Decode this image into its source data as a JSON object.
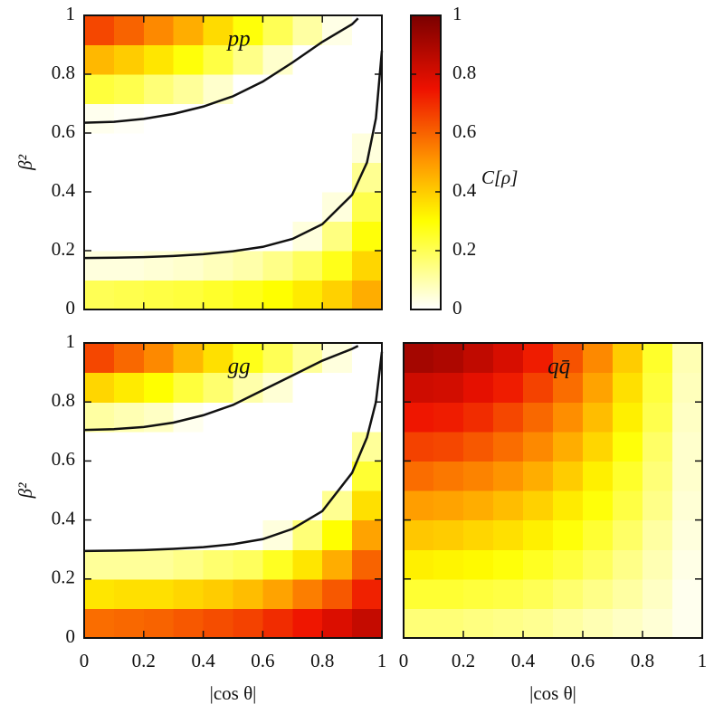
{
  "chart_data": [
    {
      "type": "heatmap",
      "title": "pp",
      "ylabel": "β²",
      "x": [
        0.05,
        0.15,
        0.25,
        0.35,
        0.45,
        0.55,
        0.65,
        0.75,
        0.85,
        0.95
      ],
      "y": [
        0.05,
        0.15,
        0.25,
        0.35,
        0.45,
        0.55,
        0.65,
        0.75,
        0.85,
        0.95
      ],
      "values": [
        [
          0.2,
          0.21,
          0.22,
          0.23,
          0.25,
          0.27,
          0.3,
          0.34,
          0.39,
          0.46
        ],
        [
          0.04,
          0.04,
          0.05,
          0.06,
          0.08,
          0.1,
          0.14,
          0.19,
          0.27,
          0.38
        ],
        [
          0,
          0,
          0,
          0,
          0,
          0,
          0,
          0.04,
          0.15,
          0.29
        ],
        [
          0,
          0,
          0,
          0,
          0,
          0,
          0,
          0,
          0.04,
          0.21
        ],
        [
          0,
          0,
          0,
          0,
          0,
          0,
          0,
          0,
          0,
          0.13
        ],
        [
          0,
          0,
          0,
          0,
          0,
          0,
          0,
          0,
          0,
          0.04
        ],
        [
          0.02,
          0.01,
          0,
          0,
          0,
          0,
          0,
          0,
          0,
          0
        ],
        [
          0.23,
          0.21,
          0.16,
          0.12,
          0.06,
          0,
          0,
          0,
          0,
          0
        ],
        [
          0.44,
          0.4,
          0.35,
          0.29,
          0.22,
          0.14,
          0.06,
          0,
          0,
          0
        ],
        [
          0.65,
          0.6,
          0.53,
          0.46,
          0.37,
          0.29,
          0.2,
          0.11,
          0.03,
          0
        ]
      ],
      "contours": [
        {
          "x": [
            0,
            0.1,
            0.2,
            0.3,
            0.4,
            0.5,
            0.6,
            0.7,
            0.8,
            0.9,
            0.95,
            0.98,
            1
          ],
          "y": [
            0.175,
            0.176,
            0.178,
            0.182,
            0.188,
            0.198,
            0.213,
            0.24,
            0.29,
            0.39,
            0.5,
            0.65,
            0.88
          ]
        },
        {
          "x": [
            0,
            0.1,
            0.2,
            0.3,
            0.4,
            0.5,
            0.6,
            0.7,
            0.8,
            0.9,
            0.92
          ],
          "y": [
            0.635,
            0.638,
            0.648,
            0.665,
            0.69,
            0.725,
            0.775,
            0.84,
            0.91,
            0.97,
            0.99
          ]
        }
      ],
      "xlim": [
        0,
        1
      ],
      "ylim": [
        0,
        1
      ],
      "xticks": [
        0,
        0.2,
        0.4,
        0.6,
        0.8,
        1
      ],
      "yticks": [
        0,
        0.2,
        0.4,
        0.6,
        0.8,
        1
      ]
    },
    {
      "type": "heatmap",
      "title": "gg",
      "ylabel": "β²",
      "xlabel": "|cos θ|",
      "x": [
        0.05,
        0.15,
        0.25,
        0.35,
        0.45,
        0.55,
        0.65,
        0.75,
        0.85,
        0.95
      ],
      "y": [
        0.05,
        0.15,
        0.25,
        0.35,
        0.45,
        0.55,
        0.65,
        0.75,
        0.85,
        0.95
      ],
      "values": [
        [
          0.58,
          0.59,
          0.6,
          0.62,
          0.64,
          0.66,
          0.7,
          0.74,
          0.79,
          0.84
        ],
        [
          0.35,
          0.36,
          0.36,
          0.38,
          0.4,
          0.43,
          0.48,
          0.55,
          0.62,
          0.72
        ],
        [
          0.12,
          0.12,
          0.12,
          0.14,
          0.17,
          0.19,
          0.26,
          0.35,
          0.46,
          0.6
        ],
        [
          0,
          0,
          0,
          0,
          0,
          0,
          0.04,
          0.16,
          0.3,
          0.48
        ],
        [
          0,
          0,
          0,
          0,
          0,
          0,
          0,
          0,
          0.13,
          0.36
        ],
        [
          0,
          0,
          0,
          0,
          0,
          0,
          0,
          0,
          0,
          0.24
        ],
        [
          0,
          0,
          0,
          0,
          0,
          0,
          0,
          0,
          0,
          0.12
        ],
        [
          0.11,
          0.09,
          0.07,
          0.02,
          0,
          0,
          0,
          0,
          0,
          0
        ],
        [
          0.38,
          0.34,
          0.3,
          0.23,
          0.17,
          0.1,
          0.05,
          0,
          0,
          0
        ],
        [
          0.65,
          0.59,
          0.53,
          0.44,
          0.36,
          0.27,
          0.2,
          0.12,
          0.04,
          0
        ]
      ],
      "contours": [
        {
          "x": [
            0,
            0.1,
            0.2,
            0.3,
            0.4,
            0.5,
            0.6,
            0.7,
            0.8,
            0.9,
            0.95,
            0.98,
            1
          ],
          "y": [
            0.295,
            0.296,
            0.298,
            0.302,
            0.308,
            0.318,
            0.335,
            0.37,
            0.43,
            0.56,
            0.68,
            0.8,
            0.97
          ]
        },
        {
          "x": [
            0,
            0.1,
            0.2,
            0.3,
            0.4,
            0.5,
            0.6,
            0.7,
            0.8,
            0.9,
            0.92
          ],
          "y": [
            0.705,
            0.708,
            0.715,
            0.73,
            0.755,
            0.79,
            0.84,
            0.89,
            0.94,
            0.98,
            0.99
          ]
        }
      ],
      "xlim": [
        0,
        1
      ],
      "ylim": [
        0,
        1
      ],
      "xticks": [
        0,
        0.2,
        0.4,
        0.6,
        0.8,
        1
      ],
      "yticks": [
        0,
        0.2,
        0.4,
        0.6,
        0.8,
        1
      ]
    },
    {
      "type": "heatmap",
      "title": "qq̄",
      "xlabel": "|cos θ|",
      "x": [
        0.05,
        0.15,
        0.25,
        0.35,
        0.45,
        0.55,
        0.65,
        0.75,
        0.85,
        0.95
      ],
      "y": [
        0.05,
        0.15,
        0.25,
        0.35,
        0.45,
        0.55,
        0.65,
        0.75,
        0.85,
        0.95
      ],
      "values": [
        [
          0.16,
          0.16,
          0.15,
          0.14,
          0.13,
          0.11,
          0.09,
          0.07,
          0.05,
          0.02
        ],
        [
          0.24,
          0.24,
          0.23,
          0.22,
          0.2,
          0.17,
          0.14,
          0.11,
          0.07,
          0.02
        ],
        [
          0.33,
          0.32,
          0.31,
          0.29,
          0.26,
          0.23,
          0.19,
          0.14,
          0.09,
          0.03
        ],
        [
          0.41,
          0.4,
          0.38,
          0.36,
          0.33,
          0.29,
          0.24,
          0.18,
          0.11,
          0.04
        ],
        [
          0.49,
          0.48,
          0.46,
          0.43,
          0.39,
          0.34,
          0.29,
          0.22,
          0.14,
          0.05
        ],
        [
          0.58,
          0.56,
          0.54,
          0.51,
          0.46,
          0.4,
          0.33,
          0.25,
          0.16,
          0.06
        ],
        [
          0.66,
          0.65,
          0.62,
          0.58,
          0.53,
          0.46,
          0.38,
          0.29,
          0.18,
          0.06
        ],
        [
          0.74,
          0.73,
          0.7,
          0.65,
          0.59,
          0.52,
          0.43,
          0.33,
          0.21,
          0.07
        ],
        [
          0.82,
          0.81,
          0.77,
          0.73,
          0.66,
          0.58,
          0.48,
          0.36,
          0.23,
          0.08
        ],
        [
          0.91,
          0.89,
          0.85,
          0.8,
          0.73,
          0.63,
          0.53,
          0.4,
          0.25,
          0.09
        ]
      ],
      "contours": [],
      "xlim": [
        0,
        1
      ],
      "ylim": [
        0,
        1
      ],
      "xticks": [
        0,
        0.2,
        0.4,
        0.6,
        0.8,
        1
      ],
      "yticks": [
        0,
        0.2,
        0.4,
        0.6,
        0.8,
        1
      ]
    }
  ],
  "colorbar": {
    "label": "C[ρ]",
    "lim": [
      0,
      1
    ],
    "ticks": [
      0,
      0.2,
      0.4,
      0.6,
      0.8,
      1
    ],
    "colormap": [
      {
        "value": 0,
        "color": "#ffffff"
      },
      {
        "value": 0.3,
        "color": "#ffff00"
      },
      {
        "value": 0.5,
        "color": "#ff9900"
      },
      {
        "value": 0.75,
        "color": "#ee1100"
      },
      {
        "value": 1,
        "color": "#7a0000"
      }
    ]
  }
}
